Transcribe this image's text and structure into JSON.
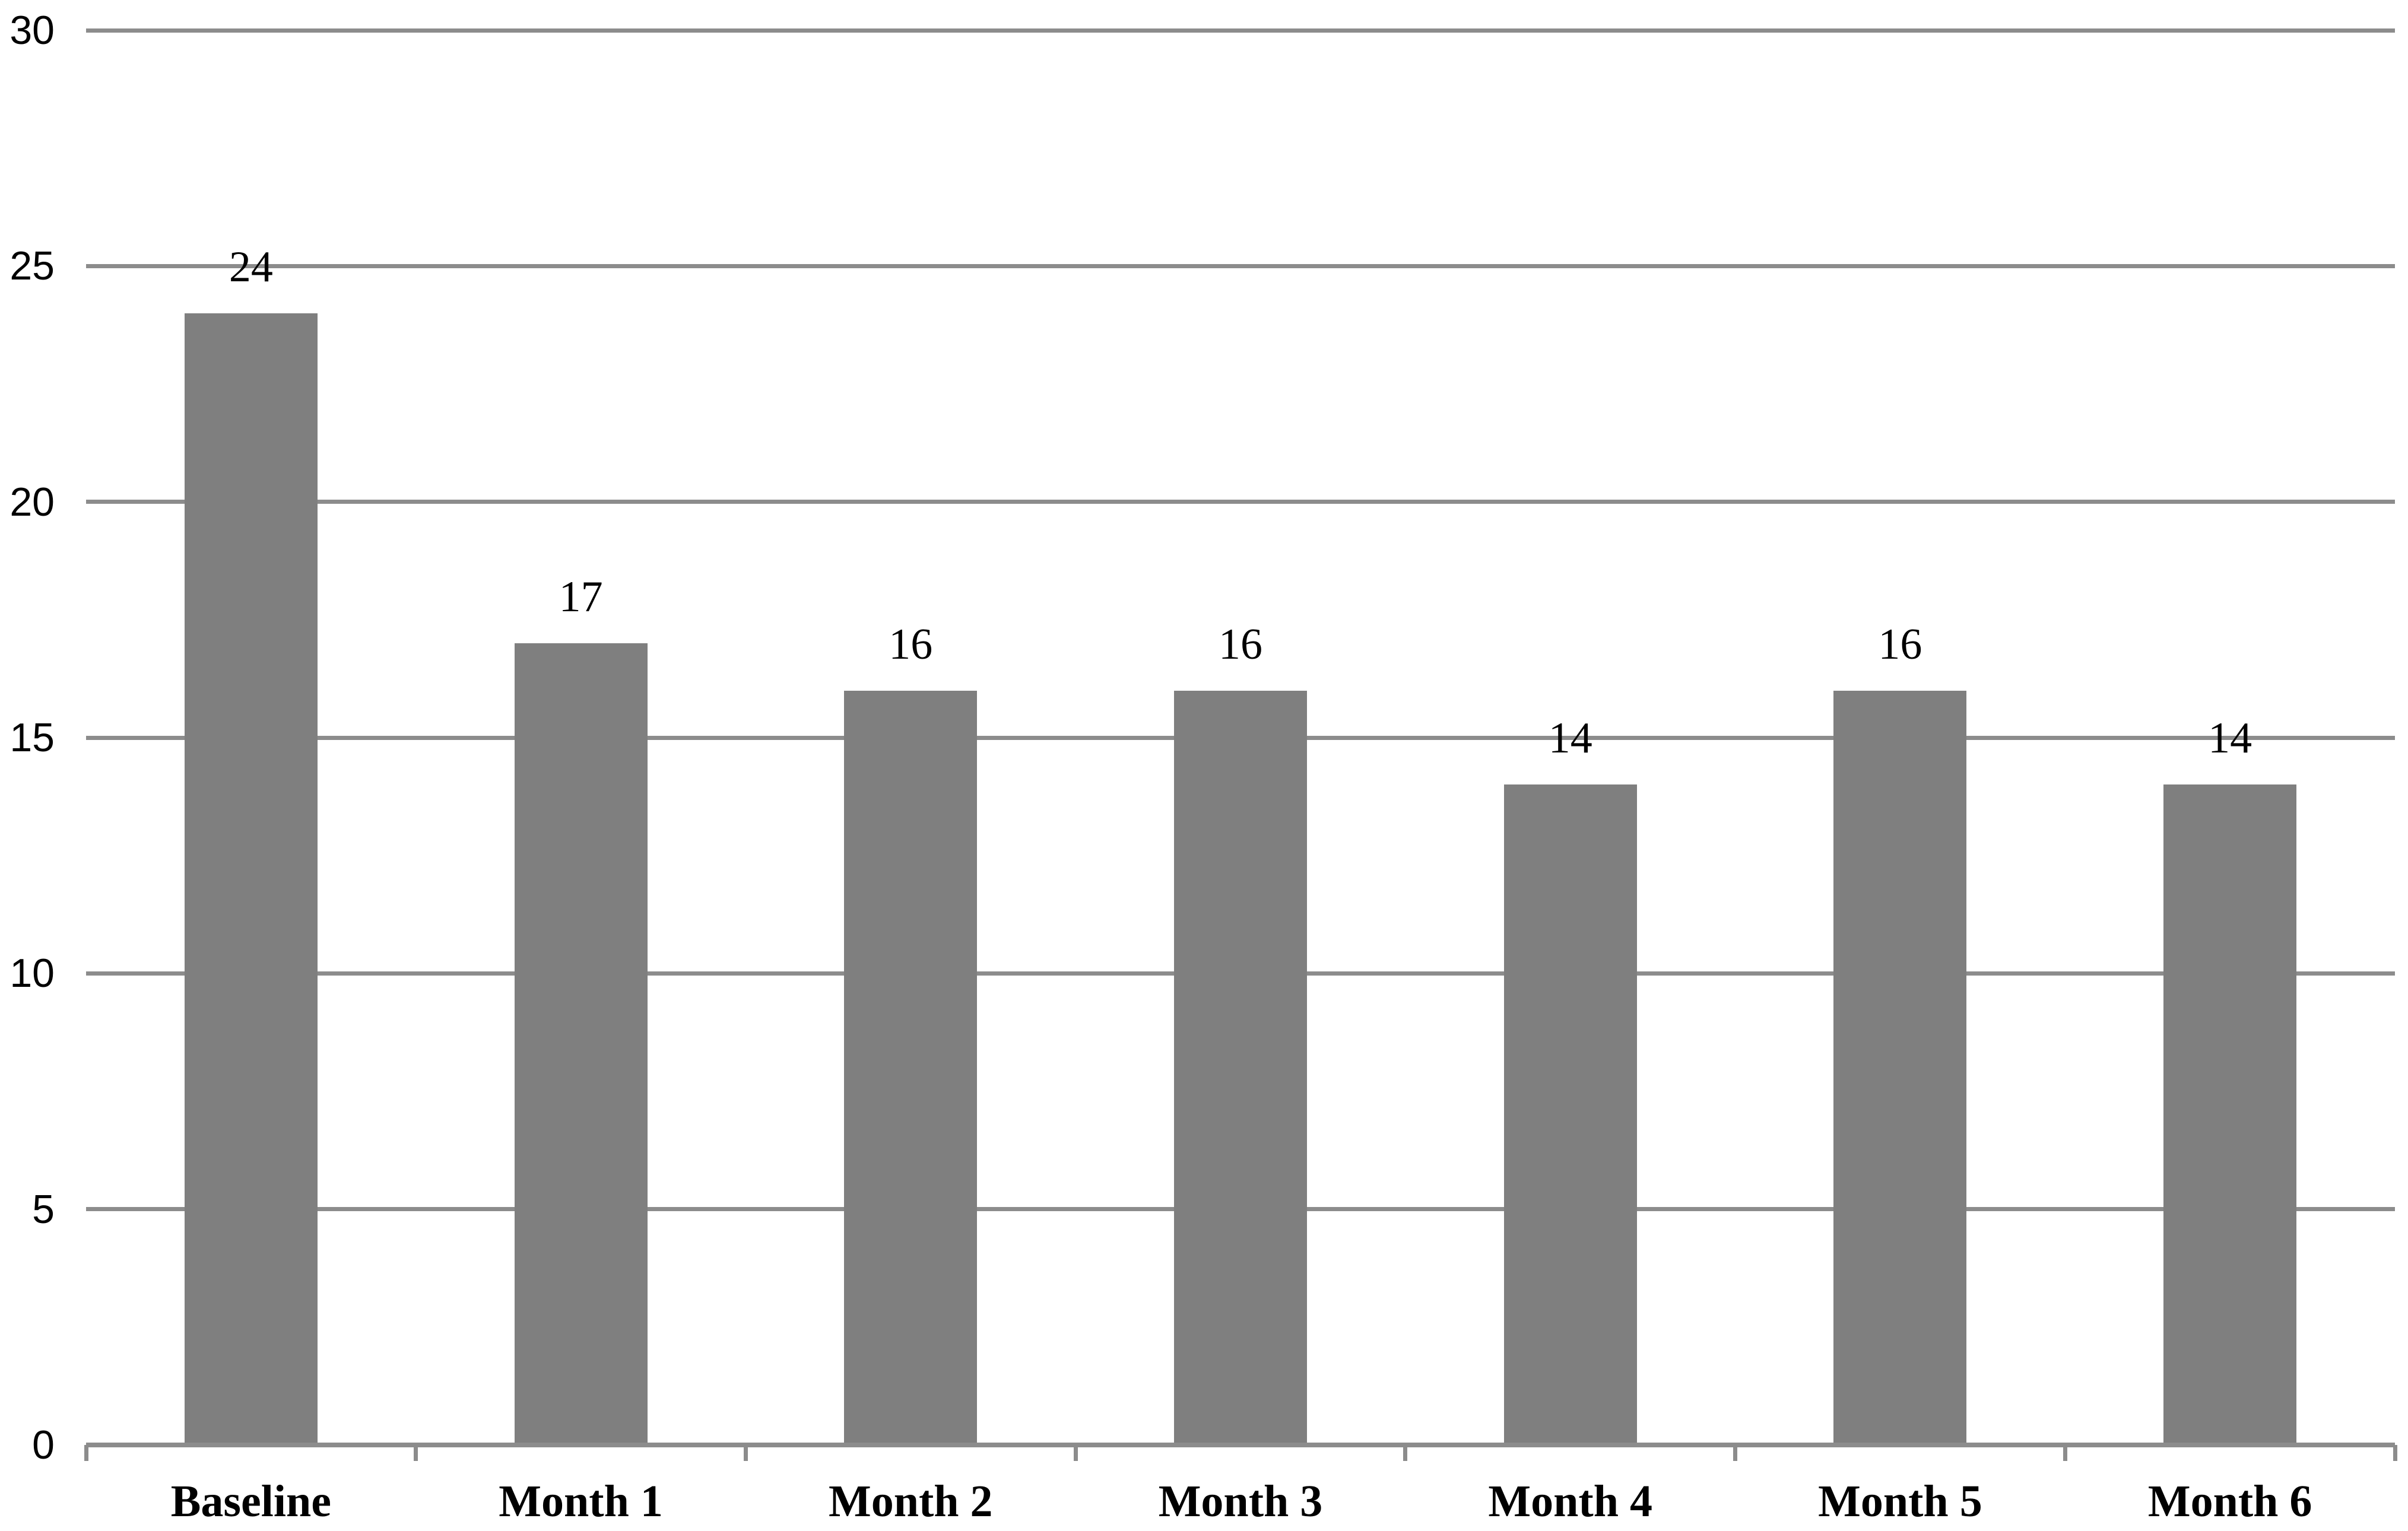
{
  "chart_data": {
    "type": "bar",
    "title": "",
    "xlabel": "",
    "ylabel": "",
    "categories": [
      "Baseline",
      "Month 1",
      "Month 2",
      "Month 3",
      "Month 4",
      "Month 5",
      "Month 6"
    ],
    "values": [
      24,
      17,
      16,
      16,
      14,
      16,
      14
    ],
    "data_labels": [
      "24",
      "17",
      "16",
      "16",
      "14",
      "16",
      "14"
    ],
    "ylim": [
      0,
      30
    ],
    "yticks": [
      0,
      5,
      10,
      15,
      20,
      25,
      30
    ],
    "ytick_labels": [
      "0",
      "5",
      "10",
      "15",
      "20",
      "25",
      "30"
    ],
    "grid": true,
    "legend": false,
    "colors": {
      "bar_fill": "#7f7f7f",
      "gridline": "#8c8c8c",
      "axis_line": "#8c8c8c",
      "tick": "#8c8c8c",
      "text": "#000000",
      "background": "#ffffff"
    }
  }
}
